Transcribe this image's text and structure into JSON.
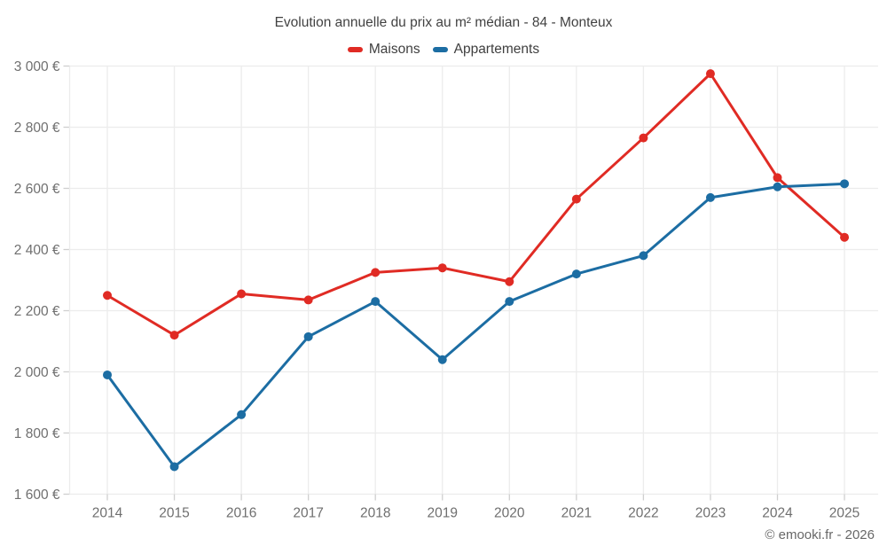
{
  "header": {
    "title": "Evolution annuelle du prix au m² médian - 84 - Monteux"
  },
  "chart_data": {
    "type": "line",
    "title": "Evolution annuelle du prix au m² médian - 84 - Monteux",
    "categories": [
      "2014",
      "2015",
      "2016",
      "2017",
      "2018",
      "2019",
      "2020",
      "2021",
      "2022",
      "2023",
      "2024",
      "2025"
    ],
    "series": [
      {
        "name": "Maisons",
        "color": "#e02b24",
        "values": [
          2250,
          2120,
          2255,
          2235,
          2325,
          2340,
          2295,
          2565,
          2765,
          2975,
          2635,
          2440
        ]
      },
      {
        "name": "Appartements",
        "color": "#1c6da3",
        "values": [
          1990,
          1690,
          1860,
          2115,
          2230,
          2040,
          2230,
          2320,
          2380,
          2570,
          2605,
          2615
        ]
      }
    ],
    "y_ticks": [
      {
        "value": 3000,
        "label": "3 000 €"
      },
      {
        "value": 2800,
        "label": "2 800 €"
      },
      {
        "value": 2600,
        "label": "2 600 €"
      },
      {
        "value": 2400,
        "label": "2 400 €"
      },
      {
        "value": 2200,
        "label": "2 200 €"
      },
      {
        "value": 2000,
        "label": "2 000 €"
      },
      {
        "value": 1800,
        "label": "1 800 €"
      },
      {
        "value": 1600,
        "label": "1 600 €"
      }
    ],
    "ylim": [
      1600,
      3000
    ],
    "unit": "€",
    "grid": true,
    "legend_position": "top"
  },
  "colors": {
    "maisons": "#e02b24",
    "appartements": "#1c6da3",
    "gridline": "#ececec",
    "tick": "#cfcfcf",
    "axis_label": "#6f6f6f",
    "title_text": "#424242"
  },
  "footer": {
    "copyright": "© emooki.fr - 2026"
  }
}
